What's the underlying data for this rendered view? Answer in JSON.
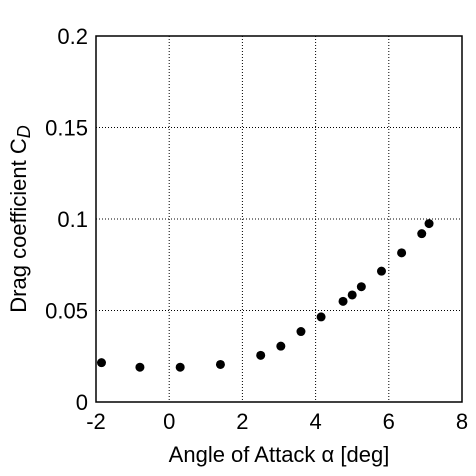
{
  "chart_data": {
    "type": "scatter",
    "title": "",
    "xlabel": "Angle of Attack α [deg]",
    "ylabel": "Drag coefficient C",
    "ylabel_subscript": "D",
    "xlim": [
      -2,
      8
    ],
    "ylim": [
      0,
      0.2
    ],
    "x_ticks": [
      -2,
      0,
      2,
      4,
      6,
      8
    ],
    "x_tick_labels": [
      "-2",
      "0",
      "2",
      "4",
      "6",
      "8"
    ],
    "y_ticks": [
      0,
      0.05,
      0.1,
      0.15,
      0.2
    ],
    "y_tick_labels": [
      "0",
      "0.05",
      "0.1",
      "0.15",
      "0.2"
    ],
    "grid": true,
    "marker_color": "#000000",
    "series": [
      {
        "x": [
          -1.85,
          -0.8,
          0.3,
          1.4,
          2.5,
          3.05,
          3.6,
          4.15,
          4.75,
          5.0,
          5.25,
          5.8,
          6.35,
          6.9,
          7.1
        ],
        "y": [
          0.0215,
          0.019,
          0.019,
          0.0205,
          0.0255,
          0.0305,
          0.0385,
          0.0465,
          0.055,
          0.0585,
          0.063,
          0.0715,
          0.0815,
          0.092,
          0.0975
        ]
      }
    ]
  }
}
